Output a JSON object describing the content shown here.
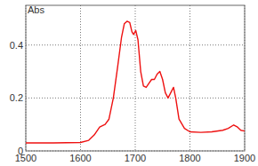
{
  "chart_data": {
    "type": "line",
    "y_label": "Abs",
    "x": [
      1500,
      1550,
      1600,
      1615,
      1625,
      1635,
      1645,
      1652,
      1660,
      1668,
      1675,
      1680,
      1685,
      1690,
      1694,
      1697,
      1701,
      1705,
      1710,
      1715,
      1720,
      1725,
      1730,
      1735,
      1740,
      1745,
      1750,
      1755,
      1760,
      1765,
      1770,
      1774,
      1780,
      1790,
      1800,
      1820,
      1840,
      1860,
      1870,
      1880,
      1887,
      1893,
      1900
    ],
    "series": [
      {
        "color": "#ee1111",
        "values": [
          0.03,
          0.03,
          0.032,
          0.04,
          0.06,
          0.09,
          0.1,
          0.12,
          0.2,
          0.32,
          0.43,
          0.48,
          0.49,
          0.485,
          0.45,
          0.44,
          0.455,
          0.42,
          0.3,
          0.245,
          0.24,
          0.255,
          0.27,
          0.27,
          0.29,
          0.3,
          0.27,
          0.22,
          0.2,
          0.22,
          0.24,
          0.2,
          0.12,
          0.085,
          0.072,
          0.07,
          0.072,
          0.078,
          0.085,
          0.098,
          0.09,
          0.078,
          0.075
        ]
      }
    ],
    "xlim": [
      1500,
      1900
    ],
    "xticks": [
      1500,
      1600,
      1700,
      1800,
      1900
    ],
    "ylim": [
      0,
      0.55
    ],
    "yticks": [
      0,
      0.2,
      0.4
    ],
    "grid": true
  }
}
